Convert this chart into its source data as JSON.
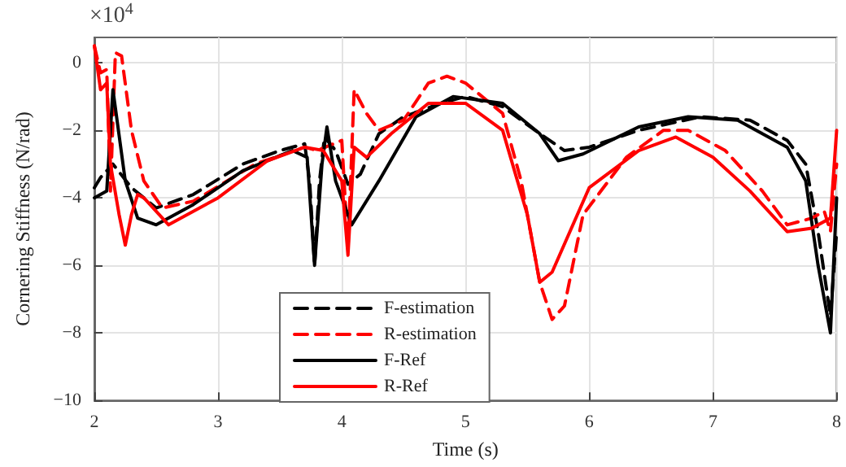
{
  "chart_data": {
    "type": "line",
    "xlabel": "Time (s)",
    "ylabel": "Cornering Stiffness (N/rad)",
    "annotations": [
      "×10$^{4}$"
    ],
    "xlim": [
      2,
      8
    ],
    "xticks": [
      2,
      3,
      4,
      5,
      6,
      7,
      8
    ],
    "ylim": [
      -10,
      0.75
    ],
    "yticks": [
      -10,
      -8,
      -6,
      -4,
      -2,
      0
    ],
    "grid": true,
    "legend": "bottom",
    "marker": "none",
    "series": [
      {
        "name": "F-estimation",
        "color": "#000000",
        "line_style": "dashed",
        "x": [
          2.0,
          2.05,
          2.15,
          2.3,
          2.5,
          2.8,
          3.2,
          3.5,
          3.7,
          3.74,
          3.78,
          3.82,
          3.86,
          3.95,
          4.05,
          4.15,
          4.3,
          4.5,
          4.8,
          5.0,
          5.3,
          5.6,
          5.8,
          6.0,
          6.4,
          6.9,
          7.3,
          7.6,
          7.75,
          7.85,
          7.95,
          8.0
        ],
        "values": [
          -3.7,
          -3.4,
          -3.0,
          -3.7,
          -4.3,
          -3.9,
          -3.0,
          -2.6,
          -2.4,
          -3.5,
          -6.0,
          -3.5,
          -2.2,
          -2.6,
          -3.6,
          -3.3,
          -2.1,
          -1.6,
          -1.2,
          -1.0,
          -1.3,
          -2.1,
          -2.6,
          -2.5,
          -2.0,
          -1.6,
          -1.7,
          -2.3,
          -3.0,
          -5.0,
          -7.5,
          -5.0
        ]
      },
      {
        "name": "R-estimation",
        "color": "#ff0000",
        "line_style": "dashed",
        "x": [
          2.0,
          2.05,
          2.1,
          2.13,
          2.17,
          2.22,
          2.3,
          2.4,
          2.55,
          2.8,
          3.3,
          3.7,
          3.8,
          4.0,
          4.05,
          4.1,
          4.2,
          4.3,
          4.5,
          4.7,
          4.85,
          5.0,
          5.3,
          5.45,
          5.6,
          5.7,
          5.8,
          5.95,
          6.3,
          6.6,
          6.8,
          7.1,
          7.4,
          7.6,
          7.8,
          7.9,
          7.95,
          8.0
        ],
        "values": [
          0.5,
          -0.3,
          -0.2,
          -3.8,
          0.3,
          0.2,
          -2.0,
          -3.5,
          -4.3,
          -4.1,
          -3.0,
          -2.5,
          -2.6,
          -2.3,
          -5.5,
          -0.8,
          -1.5,
          -2.0,
          -1.7,
          -0.6,
          -0.4,
          -0.6,
          -1.5,
          -3.5,
          -6.5,
          -7.6,
          -7.2,
          -4.5,
          -2.8,
          -2.0,
          -2.0,
          -2.6,
          -3.8,
          -4.8,
          -4.6,
          -4.4,
          -5.0,
          -3.0
        ]
      },
      {
        "name": "F-Ref",
        "color": "#000000",
        "line_style": "solid",
        "x": [
          2.0,
          2.1,
          2.15,
          2.25,
          2.35,
          2.5,
          2.8,
          3.2,
          3.6,
          3.72,
          3.78,
          3.84,
          3.88,
          3.95,
          4.0,
          4.08,
          4.3,
          4.6,
          4.9,
          5.3,
          5.6,
          5.75,
          5.95,
          6.4,
          6.8,
          7.2,
          7.6,
          7.75,
          7.85,
          7.95,
          8.0
        ],
        "values": [
          -4.0,
          -3.8,
          -0.8,
          -3.5,
          -4.6,
          -4.8,
          -4.2,
          -3.2,
          -2.6,
          -2.8,
          -6.0,
          -3.0,
          -1.9,
          -3.5,
          -4.0,
          -4.8,
          -3.5,
          -1.6,
          -1.0,
          -1.2,
          -2.1,
          -2.9,
          -2.7,
          -1.9,
          -1.6,
          -1.7,
          -2.5,
          -3.5,
          -6.0,
          -8.0,
          -4.0
        ]
      },
      {
        "name": "R-Ref",
        "color": "#ff0000",
        "line_style": "solid",
        "x": [
          2.0,
          2.05,
          2.1,
          2.13,
          2.2,
          2.25,
          2.3,
          2.35,
          2.4,
          2.6,
          3.0,
          3.4,
          3.7,
          3.85,
          4.0,
          4.05,
          4.1,
          4.2,
          4.4,
          4.7,
          5.0,
          5.3,
          5.5,
          5.6,
          5.7,
          6.0,
          6.4,
          6.7,
          7.0,
          7.3,
          7.6,
          7.8,
          7.95,
          8.0
        ],
        "values": [
          0.5,
          -0.8,
          -0.6,
          -3.0,
          -4.5,
          -5.4,
          -4.5,
          -3.9,
          -4.0,
          -4.8,
          -4.0,
          -2.9,
          -2.5,
          -2.6,
          -3.5,
          -5.7,
          -2.5,
          -2.8,
          -2.1,
          -1.2,
          -1.2,
          -2.0,
          -4.5,
          -6.5,
          -6.2,
          -3.7,
          -2.6,
          -2.2,
          -2.8,
          -3.8,
          -5.0,
          -4.9,
          -4.6,
          -2.0
        ]
      }
    ]
  }
}
